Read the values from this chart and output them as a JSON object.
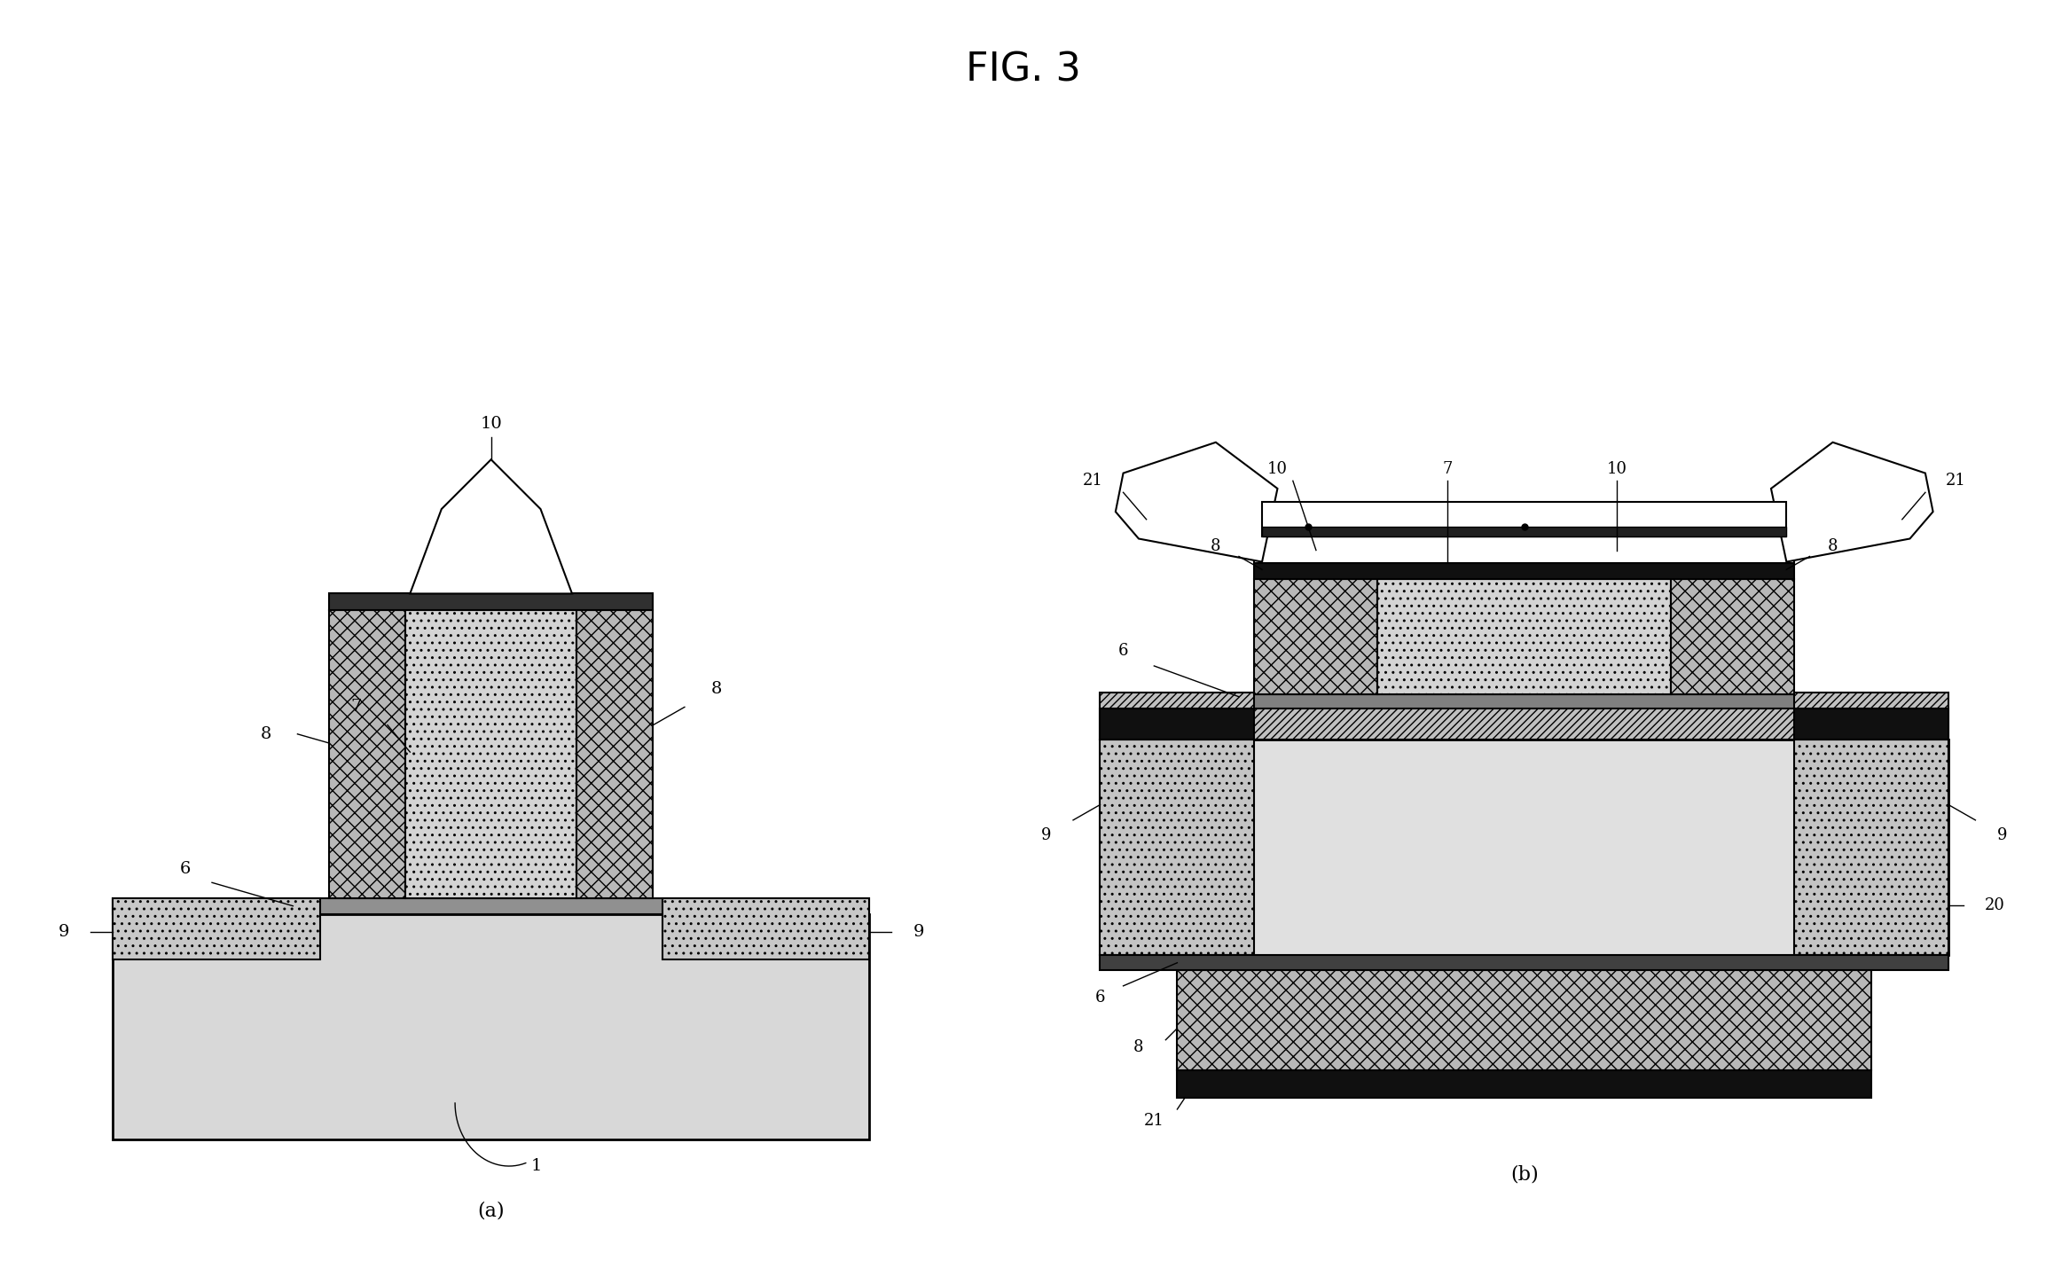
{
  "title": "FIG. 3",
  "title_fontsize": 32,
  "background_color": "#ffffff",
  "colors": {
    "crosshatch_bg": "#c8c8c8",
    "dotted_bg": "#d4d4d4",
    "diag_bg": "#c0c0c0",
    "substrate_bg": "#d8d8d8",
    "black": "#000000",
    "white": "#ffffff",
    "dark_layer": "#888888",
    "mid_gray": "#b8b8b8",
    "light_bg": "#e8e8e8"
  }
}
